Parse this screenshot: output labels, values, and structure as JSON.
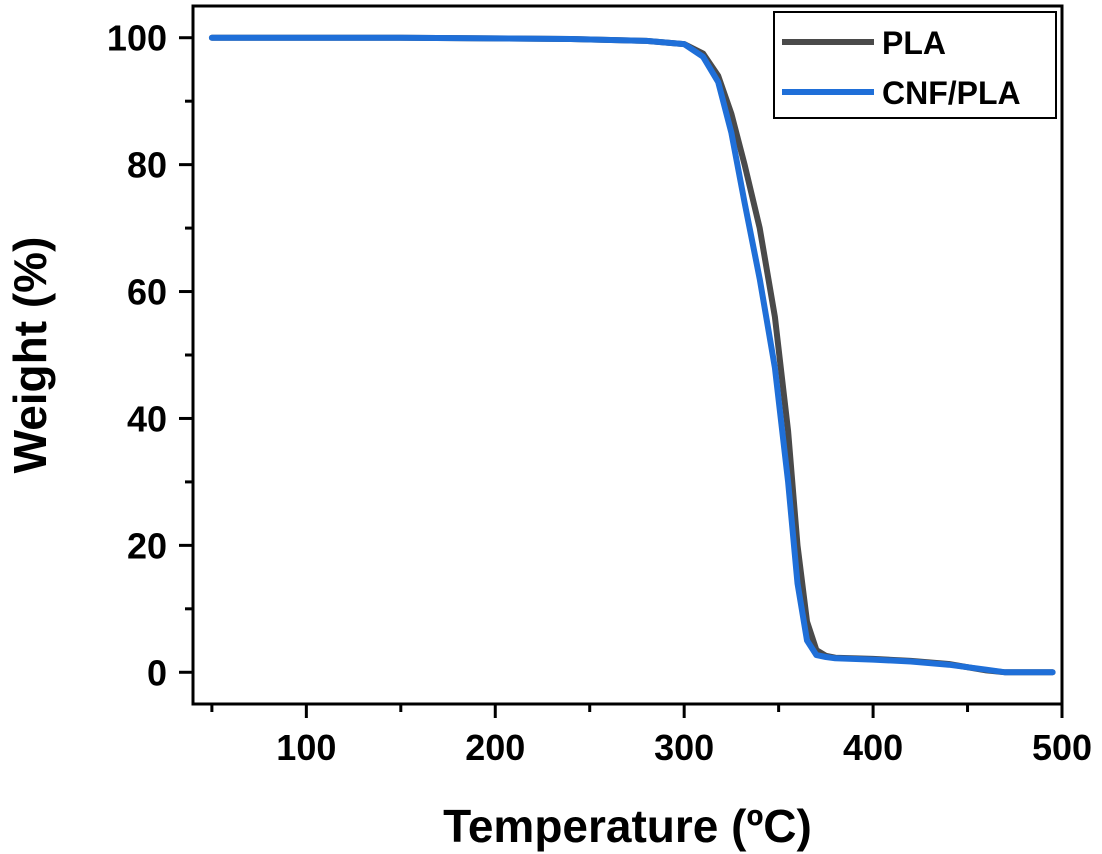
{
  "chart_data": {
    "type": "line",
    "xlabel": "Temperature (ºC)",
    "ylabel": "Weight (%)",
    "xlim": [
      40,
      500
    ],
    "ylim": [
      -5,
      105
    ],
    "xticks": [
      100,
      200,
      300,
      400,
      500
    ],
    "yticks": [
      0,
      20,
      40,
      60,
      80,
      100
    ],
    "grid": false,
    "legend_position": "top-right",
    "series": [
      {
        "name": "PLA",
        "color": "#4a4a4a",
        "x": [
          50,
          150,
          240,
          280,
          300,
          310,
          318,
          325,
          332,
          340,
          348,
          355,
          360,
          365,
          370,
          375,
          380,
          400,
          420,
          440,
          460,
          470,
          495
        ],
        "y": [
          100,
          100,
          99.8,
          99.5,
          99,
          97.5,
          94,
          88,
          80,
          70,
          56,
          38,
          20,
          8,
          3.5,
          2.6,
          2.3,
          2.1,
          1.8,
          1.3,
          0.3,
          0,
          0
        ]
      },
      {
        "name": "CNF/PLA",
        "color": "#1f6fd8",
        "x": [
          50,
          150,
          240,
          280,
          300,
          310,
          318,
          325,
          332,
          340,
          348,
          355,
          360,
          365,
          370,
          375,
          380,
          400,
          420,
          440,
          460,
          470,
          495
        ],
        "y": [
          100,
          100,
          99.8,
          99.5,
          99,
          97,
          93,
          85,
          74,
          62,
          48,
          30,
          14,
          5,
          2.7,
          2.4,
          2.2,
          2,
          1.7,
          1.2,
          0.4,
          0,
          0
        ]
      }
    ]
  }
}
